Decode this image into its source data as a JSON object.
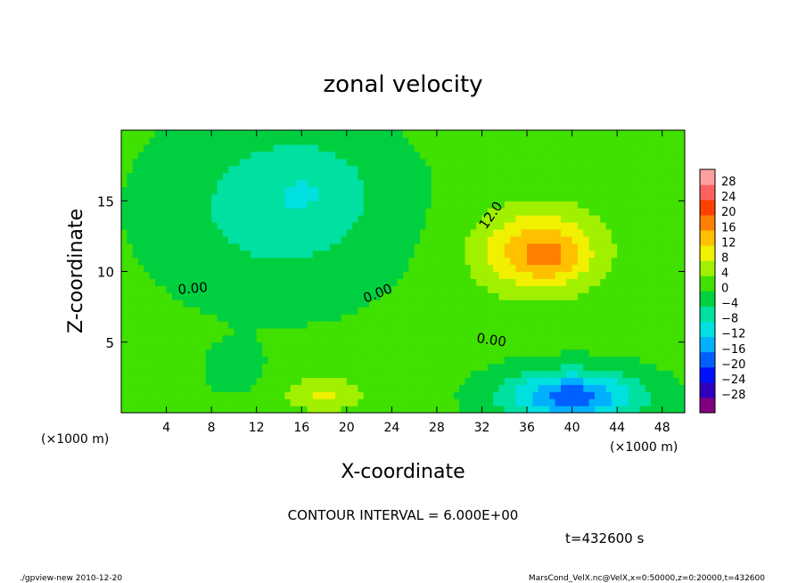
{
  "chart_data": {
    "type": "heatmap",
    "title": "zonal velocity",
    "xlabel": "X-coordinate",
    "ylabel": "Z-coordinate",
    "x_unit": "(×1000 m)",
    "y_unit": "(×1000 m)",
    "xlim": [
      0,
      50
    ],
    "ylim": [
      0,
      20
    ],
    "x_ticks": [
      4,
      8,
      12,
      16,
      20,
      24,
      28,
      32,
      36,
      40,
      44,
      48
    ],
    "y_ticks": [
      5,
      10,
      15
    ],
    "colorbar": {
      "levels": [
        -28,
        -24,
        -20,
        -16,
        -12,
        -8,
        -4,
        0,
        4,
        8,
        12,
        16,
        20,
        24,
        28
      ],
      "labels": [
        "28",
        "24",
        "20",
        "16",
        "12",
        "8",
        "4",
        "0",
        "−4",
        "−8",
        "−12",
        "−16",
        "−20",
        "−24",
        "−28"
      ],
      "colors": [
        "#800080",
        "#3000c0",
        "#0010ff",
        "#0060ff",
        "#00b0ff",
        "#00e0e0",
        "#00e0a0",
        "#00d040",
        "#40e000",
        "#a0f000",
        "#f0f000",
        "#ffc000",
        "#ff8000",
        "#ff4000",
        "#ff6060",
        "#ffa0a0"
      ]
    },
    "fields": {
      "background": 1,
      "features": [
        {
          "cx": 14,
          "cy": 14.5,
          "sx": 10,
          "sy": 6,
          "amp": -7
        },
        {
          "cx": 17,
          "cy": 16,
          "sx": 5,
          "sy": 3,
          "amp": -3
        },
        {
          "cx": 37,
          "cy": 11.5,
          "sx": 5.5,
          "sy": 3,
          "amp": 14
        },
        {
          "cx": 38,
          "cy": 11,
          "sx": 2.5,
          "sy": 1.5,
          "amp": 4
        },
        {
          "cx": 40,
          "cy": 1.2,
          "sx": 6,
          "sy": 1.8,
          "amp": -19
        },
        {
          "cx": 18,
          "cy": 1.3,
          "sx": 3.5,
          "sy": 1.2,
          "amp": 8
        },
        {
          "cx": 10,
          "cy": 3,
          "sx": 3,
          "sy": 2,
          "amp": -2
        }
      ]
    },
    "annotations": [
      "0.00",
      "0.00",
      "0.00",
      "12.0"
    ],
    "contour_interval_text": "CONTOUR INTERVAL = 6.000E+00",
    "time_text": "t=432600 s"
  },
  "footer": {
    "left": "./gpview-new  2010-12-20",
    "right": "MarsCond_VelX.nc@VelX,x=0:50000,z=0:20000,t=432600"
  }
}
